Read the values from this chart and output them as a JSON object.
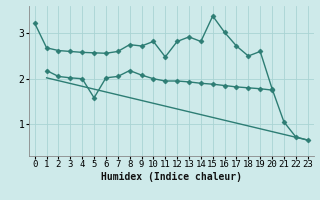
{
  "line1_x": [
    0,
    1,
    2,
    3,
    4,
    5,
    6,
    7,
    8,
    9,
    10,
    11,
    12,
    13,
    14,
    15,
    16,
    17,
    18,
    19,
    20,
    21,
    22,
    23
  ],
  "line1_y": [
    3.22,
    2.68,
    2.62,
    2.6,
    2.58,
    2.57,
    2.56,
    2.6,
    2.75,
    2.72,
    2.82,
    2.48,
    2.82,
    2.92,
    2.82,
    3.38,
    3.02,
    2.72,
    2.5,
    2.6,
    1.78,
    1.05,
    0.72,
    0.65
  ],
  "line2_x": [
    1,
    2,
    3,
    4,
    5,
    6,
    7,
    8,
    9,
    10,
    11,
    12,
    13,
    14,
    15,
    16,
    17,
    18,
    19,
    20
  ],
  "line2_y": [
    2.18,
    2.05,
    2.02,
    2.0,
    1.58,
    2.02,
    2.05,
    2.18,
    2.08,
    2.0,
    1.95,
    1.95,
    1.93,
    1.9,
    1.88,
    1.85,
    1.82,
    1.8,
    1.78,
    1.75
  ],
  "line3_x": [
    1,
    23
  ],
  "line3_y": [
    2.02,
    0.65
  ],
  "line_color": "#2d7d74",
  "bg_color": "#ceeaea",
  "grid_color": "#aad4d4",
  "xlabel": "Humidex (Indice chaleur)",
  "xlim": [
    -0.5,
    23.5
  ],
  "ylim": [
    0.3,
    3.6
  ],
  "yticks": [
    1,
    2,
    3
  ],
  "xticks": [
    0,
    1,
    2,
    3,
    4,
    5,
    6,
    7,
    8,
    9,
    10,
    11,
    12,
    13,
    14,
    15,
    16,
    17,
    18,
    19,
    20,
    21,
    22,
    23
  ],
  "marker": "D",
  "markersize": 2.5,
  "linewidth": 1.0,
  "xlabel_fontsize": 7,
  "tick_fontsize": 6.5
}
